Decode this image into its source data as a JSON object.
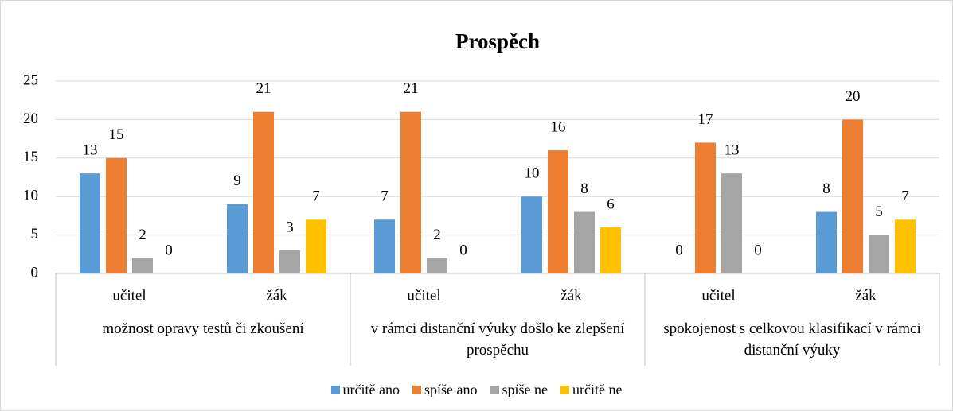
{
  "chart_data": {
    "type": "bar",
    "title": "Prospěch",
    "categories": [
      "učitel",
      "žák",
      "učitel",
      "žák",
      "učitel",
      "žák"
    ],
    "groups": [
      "možnost opravy testů či zkoušení",
      "v rámci distanční výuky došlo ke zlepšení prospěchu",
      "spokojenost s celkovou klasifikací v rámci distanční výuky"
    ],
    "series": [
      {
        "name": "určitě ano",
        "color": "#5b9bd5",
        "values": [
          13,
          9,
          7,
          10,
          0,
          8
        ]
      },
      {
        "name": "spíše ano",
        "color": "#ed7d31",
        "values": [
          15,
          21,
          21,
          16,
          17,
          20
        ]
      },
      {
        "name": "spíše ne",
        "color": "#a5a5a5",
        "values": [
          2,
          3,
          2,
          8,
          13,
          5
        ]
      },
      {
        "name": "určitě ne",
        "color": "#ffc000",
        "values": [
          0,
          7,
          0,
          6,
          0,
          7
        ]
      }
    ],
    "ylim": [
      0,
      25
    ],
    "yticks": [
      0,
      5,
      10,
      15,
      20,
      25
    ],
    "grid": true,
    "legend": "bottom"
  }
}
